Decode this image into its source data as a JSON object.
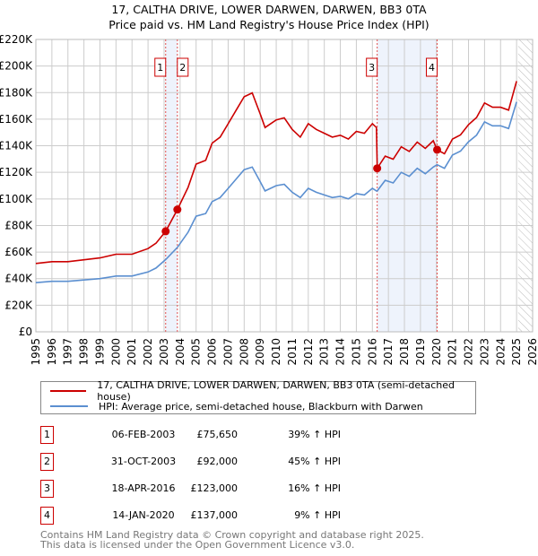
{
  "title_line1": "17, CALTHA DRIVE, LOWER DARWEN, DARWEN, BB3 0TA",
  "title_line2": "Price paid vs. HM Land Registry's House Price Index (HPI)",
  "colors": {
    "property": "#cc0000",
    "hpi": "#5b8fd0",
    "band": "#eef3fc",
    "grid": "#cccccc"
  },
  "chart_data": {
    "type": "line",
    "ylim": [
      0,
      220000
    ],
    "xlim": [
      1995,
      2026
    ],
    "y_ticks": [
      {
        "v": 0,
        "label": "£0"
      },
      {
        "v": 20000,
        "label": "£20K"
      },
      {
        "v": 40000,
        "label": "£40K"
      },
      {
        "v": 60000,
        "label": "£60K"
      },
      {
        "v": 80000,
        "label": "£80K"
      },
      {
        "v": 100000,
        "label": "£100K"
      },
      {
        "v": 120000,
        "label": "£120K"
      },
      {
        "v": 140000,
        "label": "£140K"
      },
      {
        "v": 160000,
        "label": "£160K"
      },
      {
        "v": 180000,
        "label": "£180K"
      },
      {
        "v": 200000,
        "label": "£200K"
      },
      {
        "v": 220000,
        "label": "£220K"
      }
    ],
    "x_ticks": [
      "1995",
      "1996",
      "1997",
      "1998",
      "1999",
      "2000",
      "2001",
      "2002",
      "2003",
      "2004",
      "2005",
      "2006",
      "2007",
      "2008",
      "2009",
      "2010",
      "2011",
      "2012",
      "2013",
      "2014",
      "2015",
      "2016",
      "2017",
      "2018",
      "2019",
      "2020",
      "2021",
      "2022",
      "2023",
      "2024",
      "2025",
      "2026"
    ],
    "forecast_from": 2025.1,
    "series": [
      {
        "name": "17, CALTHA DRIVE, LOWER DARWEN, DARWEN, BB3 0TA (semi-detached house)",
        "color": "#cc0000",
        "x": [
          1995,
          1996,
          1997,
          1998,
          1999,
          2000,
          2001,
          2002,
          2002.5,
          2003.1,
          2003.83,
          2004.5,
          2005,
          2005.6,
          2006,
          2006.5,
          2007,
          2007.5,
          2008,
          2008.5,
          2009,
          2009.3,
          2010,
          2010.5,
          2011,
          2011.5,
          2012,
          2012.5,
          2013,
          2013.5,
          2014,
          2014.5,
          2015,
          2015.5,
          2016,
          2016.25,
          2016.3,
          2016.8,
          2017.3,
          2017.8,
          2018.3,
          2018.8,
          2019.3,
          2019.8,
          2020.04,
          2020.5,
          2021,
          2021.5,
          2022,
          2022.5,
          2023,
          2023.5,
          2024,
          2024.5,
          2025
        ],
        "y": [
          51400,
          52800,
          52800,
          54200,
          55600,
          58400,
          58400,
          62600,
          66700,
          75650,
          92000,
          108800,
          126200,
          129000,
          142000,
          146500,
          156600,
          166800,
          176900,
          179800,
          163900,
          153700,
          159500,
          161000,
          152300,
          146500,
          156600,
          152300,
          149400,
          146500,
          147900,
          145000,
          150800,
          149400,
          156600,
          153700,
          123000,
          132200,
          129900,
          139200,
          135700,
          142700,
          138000,
          143800,
          137000,
          134000,
          145000,
          148200,
          155900,
          161300,
          172200,
          169000,
          169000,
          166800,
          188600
        ]
      },
      {
        "name": "HPI: Average price, semi-detached house, Blackburn with Darwen",
        "color": "#5b8fd0",
        "x": [
          1995,
          1996,
          1997,
          1998,
          1999,
          2000,
          2001,
          2002,
          2002.5,
          2003.1,
          2003.83,
          2004.5,
          2005,
          2005.6,
          2006,
          2006.5,
          2007,
          2007.5,
          2008,
          2008.5,
          2009,
          2009.3,
          2010,
          2010.5,
          2011,
          2011.5,
          2012,
          2012.5,
          2013,
          2013.5,
          2014,
          2014.5,
          2015,
          2015.5,
          2016,
          2016.25,
          2016.3,
          2016.8,
          2017.3,
          2017.8,
          2018.3,
          2018.8,
          2019.3,
          2019.8,
          2020.04,
          2020.5,
          2021,
          2021.5,
          2022,
          2022.5,
          2023,
          2023.5,
          2024,
          2024.5,
          2025
        ],
        "y": [
          37000,
          38000,
          38000,
          39000,
          40000,
          42000,
          42000,
          45000,
          48000,
          54400,
          63500,
          75000,
          87000,
          89000,
          98000,
          101000,
          108000,
          115000,
          122000,
          124000,
          113000,
          106000,
          110000,
          111000,
          105000,
          101000,
          108000,
          105000,
          103000,
          101000,
          102000,
          100000,
          104000,
          103000,
          108000,
          106000,
          106000,
          114000,
          112000,
          120000,
          117000,
          123000,
          119000,
          124000,
          125700,
          123000,
          133000,
          136000,
          143000,
          148000,
          158000,
          155000,
          155000,
          153000,
          173000
        ]
      }
    ],
    "sales": [
      {
        "n": "1",
        "x": 2003.1,
        "price": 75650
      },
      {
        "n": "2",
        "x": 2003.83,
        "price": 92000
      },
      {
        "n": "3",
        "x": 2016.3,
        "price": 123000
      },
      {
        "n": "4",
        "x": 2020.04,
        "price": 137000
      }
    ],
    "bands": [
      [
        2003.1,
        2003.83
      ],
      [
        2016.3,
        2020.04
      ]
    ]
  },
  "legend": {
    "property": "17, CALTHA DRIVE, LOWER DARWEN, DARWEN, BB3 0TA (semi-detached house)",
    "hpi": "HPI: Average price, semi-detached house, Blackburn with Darwen"
  },
  "transactions": [
    {
      "n": "1",
      "date": "06-FEB-2003",
      "price": "£75,650",
      "hpi": "39% ↑ HPI"
    },
    {
      "n": "2",
      "date": "31-OCT-2003",
      "price": "£92,000",
      "hpi": "45% ↑ HPI"
    },
    {
      "n": "3",
      "date": "18-APR-2016",
      "price": "£123,000",
      "hpi": "16% ↑ HPI"
    },
    {
      "n": "4",
      "date": "14-JAN-2020",
      "price": "£137,000",
      "hpi": "9% ↑ HPI"
    }
  ],
  "footer_line1": "Contains HM Land Registry data © Crown copyright and database right 2025.",
  "footer_line2": "This data is licensed under the Open Government Licence v3.0."
}
